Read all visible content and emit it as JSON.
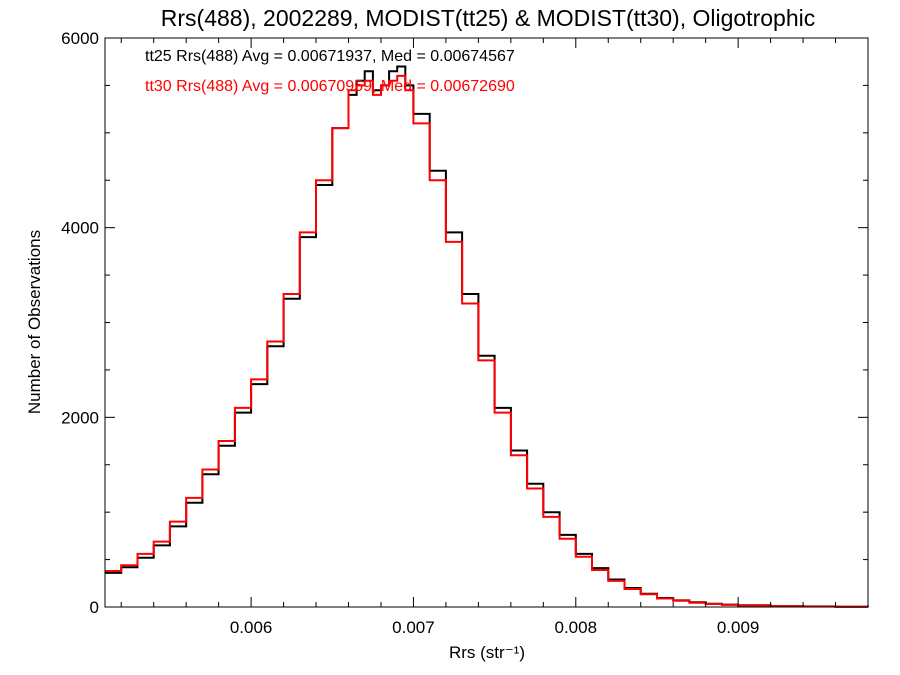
{
  "chart_data": {
    "type": "line",
    "step": true,
    "title": "Rrs(488), 2002289, MODIST(tt25) & MODIST(tt30), Oligotrophic",
    "xlabel": "Rrs (str⁻¹)",
    "ylabel": "Number of Observations",
    "xlim": [
      0.0051,
      0.0098
    ],
    "ylim": [
      0,
      6000
    ],
    "x_ticks": [
      0.006,
      0.007,
      0.008,
      0.009
    ],
    "x_tick_labels": [
      "0.006",
      "0.007",
      "0.008",
      "0.009"
    ],
    "y_ticks": [
      0,
      2000,
      4000,
      6000
    ],
    "y_tick_labels": [
      "0",
      "2000",
      "4000",
      "6000"
    ],
    "grid": false,
    "annotations": [
      {
        "text": "tt25 Rrs(488) Avg = 0.00671937, Med = 0.00674567",
        "color": "#000000"
      },
      {
        "text": "tt30 Rrs(488) Avg = 0.00670959, Med = 0.00672690",
        "color": "#ff0000"
      }
    ],
    "series": [
      {
        "color": "#000000",
        "x": [
          0.0051,
          0.0052,
          0.0053,
          0.0054,
          0.0055,
          0.0056,
          0.0057,
          0.0058,
          0.0059,
          0.006,
          0.0061,
          0.0062,
          0.0063,
          0.0064,
          0.0065,
          0.0066,
          0.00665,
          0.0067,
          0.00675,
          0.0068,
          0.00685,
          0.0069,
          0.00695,
          0.007,
          0.0071,
          0.0072,
          0.0073,
          0.0074,
          0.0075,
          0.0076,
          0.0077,
          0.0078,
          0.0079,
          0.008,
          0.0081,
          0.0082,
          0.0083,
          0.0084,
          0.0085,
          0.0086,
          0.0087,
          0.0088,
          0.0089,
          0.009,
          0.0092,
          0.0094,
          0.0096,
          0.0098
        ],
        "values": [
          360,
          420,
          520,
          650,
          850,
          1100,
          1400,
          1700,
          2050,
          2350,
          2750,
          3250,
          3900,
          4450,
          5050,
          5400,
          5550,
          5650,
          5450,
          5500,
          5650,
          5700,
          5500,
          5200,
          4600,
          3950,
          3300,
          2650,
          2100,
          1650,
          1300,
          1000,
          760,
          560,
          410,
          290,
          200,
          140,
          95,
          70,
          50,
          35,
          25,
          18,
          10,
          6,
          3,
          1
        ]
      },
      {
        "color": "#ff0000",
        "x": [
          0.0051,
          0.0052,
          0.0053,
          0.0054,
          0.0055,
          0.0056,
          0.0057,
          0.0058,
          0.0059,
          0.006,
          0.0061,
          0.0062,
          0.0063,
          0.0064,
          0.0065,
          0.0066,
          0.00665,
          0.0067,
          0.00675,
          0.0068,
          0.00685,
          0.0069,
          0.00695,
          0.007,
          0.0071,
          0.0072,
          0.0073,
          0.0074,
          0.0075,
          0.0076,
          0.0077,
          0.0078,
          0.0079,
          0.008,
          0.0081,
          0.0082,
          0.0083,
          0.0084,
          0.0085,
          0.0086,
          0.0087,
          0.0088,
          0.0089,
          0.009,
          0.0092,
          0.0094,
          0.0096,
          0.0098
        ],
        "values": [
          380,
          440,
          560,
          690,
          900,
          1150,
          1450,
          1750,
          2100,
          2400,
          2800,
          3300,
          3950,
          4500,
          5050,
          5450,
          5500,
          5550,
          5400,
          5500,
          5550,
          5600,
          5450,
          5100,
          4500,
          3850,
          3200,
          2600,
          2050,
          1600,
          1250,
          950,
          720,
          530,
          390,
          275,
          190,
          135,
          90,
          65,
          45,
          32,
          22,
          15,
          9,
          5,
          3,
          1
        ]
      }
    ]
  }
}
